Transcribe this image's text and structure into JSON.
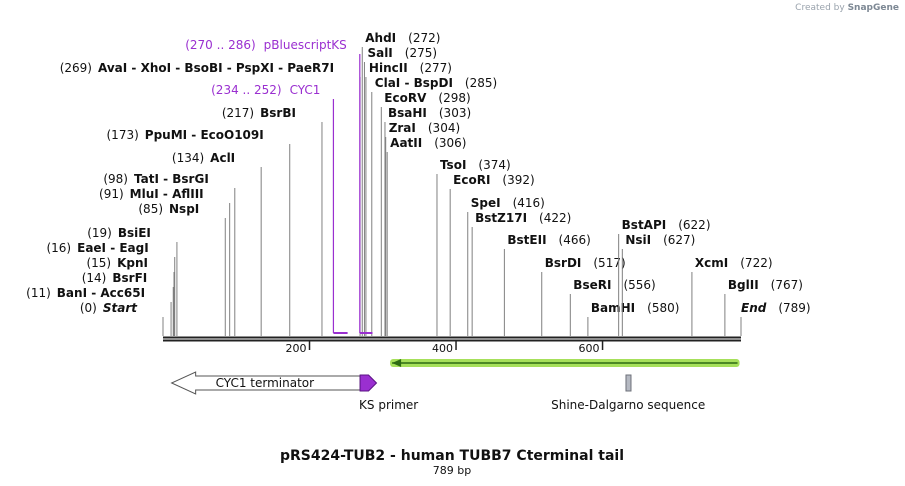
{
  "credit": {
    "prefix": "Created by",
    "brand": "SnapGene"
  },
  "title": "pRS424-TUB2 - human TUBB7 Cterminal tail",
  "length_label": "789 bp",
  "sequence_length": 789,
  "ticks": [
    {
      "pos": 200,
      "label": "200"
    },
    {
      "pos": 400,
      "label": "400"
    },
    {
      "pos": 600,
      "label": "600"
    }
  ],
  "colors": {
    "backbone": "#222222",
    "feature_purple": "#9a2fd0",
    "orf_green": "#a6e05a",
    "gray_feature": "#b5b9c2",
    "label_text": "#111111"
  },
  "sites": [
    {
      "pos": 0,
      "pos_label": "(0)",
      "name": "Start",
      "italic": true
    },
    {
      "pos": 11,
      "pos_label": "(11)",
      "name": "BanI  -  Acc65I"
    },
    {
      "pos": 14,
      "pos_label": "(14)",
      "name": "BsrFI"
    },
    {
      "pos": 15,
      "pos_label": "(15)",
      "name": "KpnI"
    },
    {
      "pos": 16,
      "pos_label": "(16)",
      "name": "EaeI  -  EagI"
    },
    {
      "pos": 19,
      "pos_label": "(19)",
      "name": "BsiEI"
    },
    {
      "pos": 85,
      "pos_label": "(85)",
      "name": "NspI"
    },
    {
      "pos": 91,
      "pos_label": "(91)",
      "name": "MluI  -  AflIII"
    },
    {
      "pos": 98,
      "pos_label": "(98)",
      "name": "TatI  -  BsrGI"
    },
    {
      "pos": 134,
      "pos_label": "(134)",
      "name": "AclI"
    },
    {
      "pos": 173,
      "pos_label": "(173)",
      "name": "PpuMI  -  EcoO109I"
    },
    {
      "pos": 217,
      "pos_label": "(217)",
      "name": "BsrBI"
    },
    {
      "pos": 269,
      "pos_label": "(269)",
      "name": "AvaI  -  XhoI  -  BsoBI  -  PspXI  -  PaeR7I"
    },
    {
      "pos": 272,
      "pos_label": "(272)",
      "name": "AhdI",
      "right": true
    },
    {
      "pos": 275,
      "pos_label": "(275)",
      "name": "SalI",
      "right": true
    },
    {
      "pos": 277,
      "pos_label": "(277)",
      "name": "HincII",
      "right": true
    },
    {
      "pos": 285,
      "pos_label": "(285)",
      "name": "ClaI  -  BspDI",
      "right": true
    },
    {
      "pos": 298,
      "pos_label": "(298)",
      "name": "EcoRV",
      "right": true
    },
    {
      "pos": 303,
      "pos_label": "(303)",
      "name": "BsaHI",
      "right": true
    },
    {
      "pos": 304,
      "pos_label": "(304)",
      "name": "ZraI",
      "right": true
    },
    {
      "pos": 306,
      "pos_label": "(306)",
      "name": "AatII",
      "right": true
    },
    {
      "pos": 374,
      "pos_label": "(374)",
      "name": "TsoI",
      "right": true
    },
    {
      "pos": 392,
      "pos_label": "(392)",
      "name": "EcoRI",
      "right": true
    },
    {
      "pos": 416,
      "pos_label": "(416)",
      "name": "SpeI",
      "right": true
    },
    {
      "pos": 422,
      "pos_label": "(422)",
      "name": "BstZ17I",
      "right": true
    },
    {
      "pos": 466,
      "pos_label": "(466)",
      "name": "BstEII",
      "right": true
    },
    {
      "pos": 517,
      "pos_label": "(517)",
      "name": "BsrDI",
      "right": true
    },
    {
      "pos": 556,
      "pos_label": "(556)",
      "name": "BseRI",
      "right": true
    },
    {
      "pos": 580,
      "pos_label": "(580)",
      "name": "BamHI",
      "right": true
    },
    {
      "pos": 622,
      "pos_label": "(622)",
      "name": "BstAPI",
      "right": true
    },
    {
      "pos": 627,
      "pos_label": "(627)",
      "name": "NsiI",
      "right": true
    },
    {
      "pos": 722,
      "pos_label": "(722)",
      "name": "XcmI",
      "right": true
    },
    {
      "pos": 767,
      "pos_label": "(767)",
      "name": "BglII",
      "right": true
    },
    {
      "pos": 789,
      "pos_label": "(789)",
      "name": "End",
      "italic": true,
      "right": true
    }
  ],
  "feature_labels": [
    {
      "range": "(270 .. 286)",
      "name": "pBluescriptKS",
      "start": 270,
      "end": 286
    },
    {
      "range": "(234 .. 252)",
      "name": "CYC1",
      "start": 234,
      "end": 252
    }
  ],
  "features": [
    {
      "name": "CYC1 terminator",
      "start": 20,
      "end": 269,
      "direction": "reverse"
    },
    {
      "name": "KS primer",
      "start": 269,
      "end": 286,
      "direction": "forward"
    },
    {
      "name": "Shine-Dalgarno sequence",
      "start": 632,
      "end": 638
    },
    {
      "name": "",
      "start": 310,
      "end": 787,
      "direction": "reverse",
      "kind": "orf"
    }
  ]
}
